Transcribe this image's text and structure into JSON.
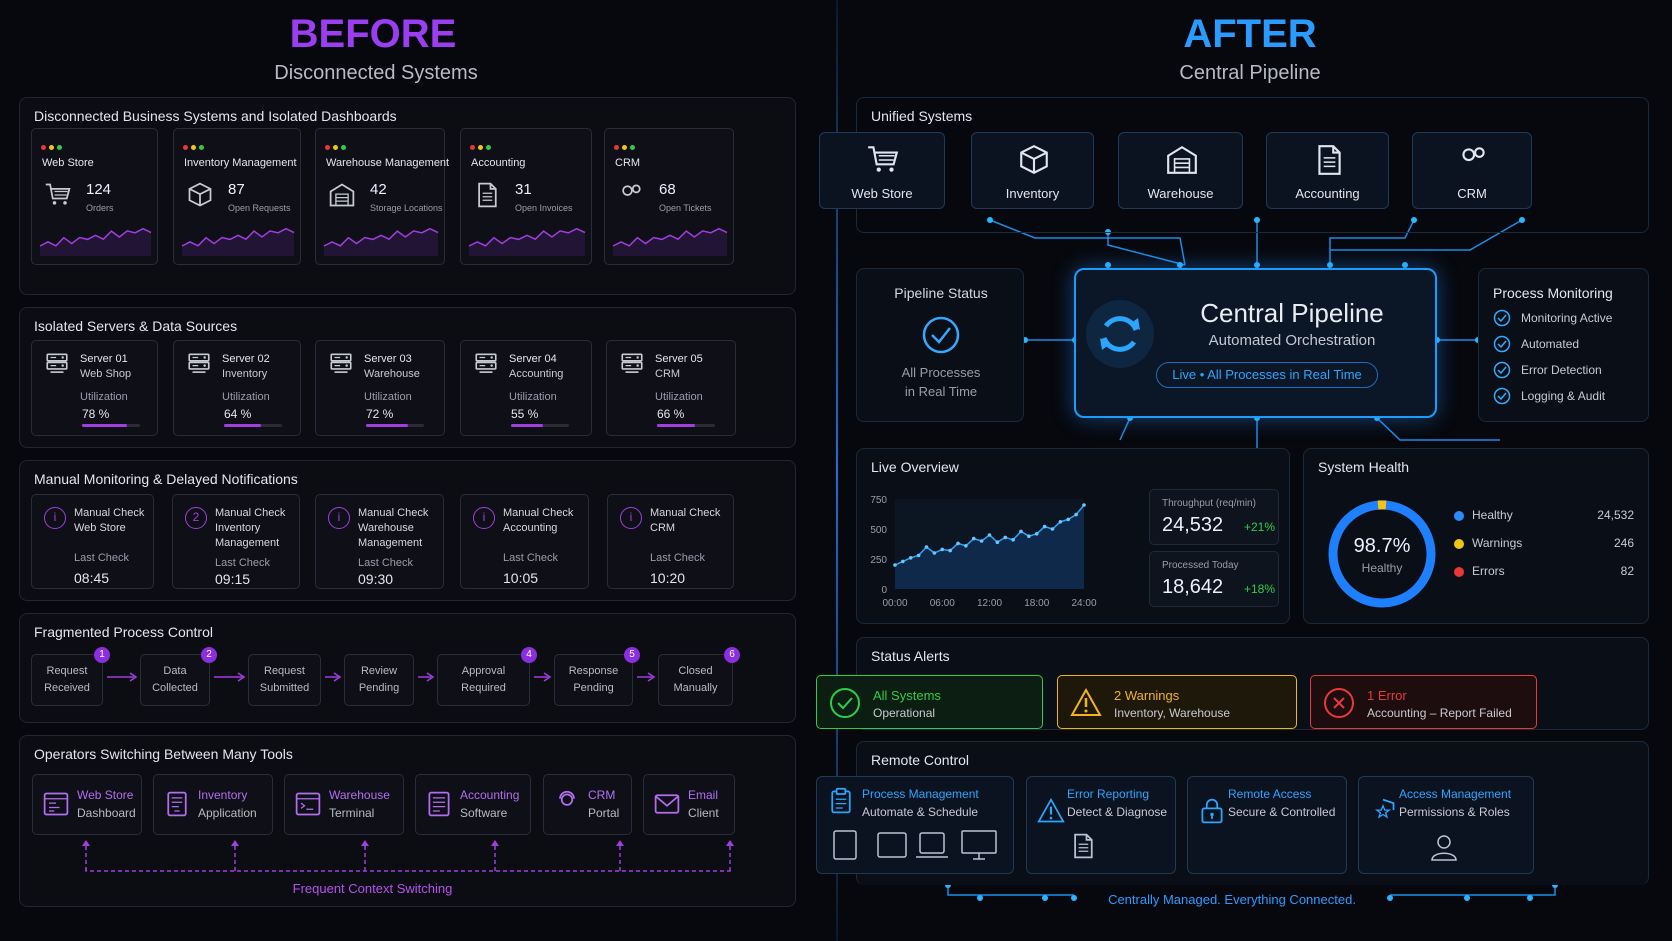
{
  "before": {
    "title": "BEFORE",
    "subtitle": "Disconnected Systems"
  },
  "after": {
    "title": "AFTER",
    "subtitle": "Central Pipeline"
  },
  "disconnected": {
    "title": "Disconnected Business Systems and Isolated Dashboards",
    "cards": [
      {
        "name": "Web Store",
        "value": "124",
        "label": "Orders",
        "icon": "cart-icon"
      },
      {
        "name": "Inventory Management",
        "value": "87",
        "label": "Open Requests",
        "icon": "box-icon"
      },
      {
        "name": "Warehouse Management",
        "value": "42",
        "label": "Storage Locations",
        "icon": "warehouse-icon"
      },
      {
        "name": "Accounting",
        "value": "31",
        "label": "Open Invoices",
        "icon": "document-icon"
      },
      {
        "name": "CRM",
        "value": "68",
        "label": "Open Tickets",
        "icon": "users-icon"
      }
    ]
  },
  "servers": {
    "title": "Isolated Servers & Data Sources",
    "util_label": "Utilization",
    "items": [
      {
        "name": "Server 01",
        "sub": "Web Shop",
        "util": "78 %",
        "pct": 78
      },
      {
        "name": "Server 02",
        "sub": "Inventory",
        "util": "64 %",
        "pct": 64
      },
      {
        "name": "Server 03",
        "sub": "Warehouse",
        "util": "72 %",
        "pct": 72
      },
      {
        "name": "Server 04",
        "sub": "Accounting",
        "util": "55 %",
        "pct": 55
      },
      {
        "name": "Server 05",
        "sub": "CRM",
        "util": "66 %",
        "pct": 66
      }
    ]
  },
  "manual": {
    "title": "Manual Monitoring & Delayed Notifications",
    "last_label": "Last Check",
    "items": [
      {
        "l1": "Manual Check",
        "l2": "Web Store",
        "l3": "",
        "time": "08:45"
      },
      {
        "l1": "Manual Check",
        "l2": "Inventory",
        "l3": "Management",
        "time": "09:15"
      },
      {
        "l1": "Manual Check",
        "l2": "Warehouse",
        "l3": "Management",
        "time": "09:30"
      },
      {
        "l1": "Manual Check",
        "l2": "Accounting",
        "l3": "",
        "time": "10:05"
      },
      {
        "l1": "Manual Check",
        "l2": "CRM",
        "l3": "",
        "time": "10:20"
      }
    ]
  },
  "process": {
    "title": "Fragmented Process Control",
    "steps": [
      {
        "l1": "Request",
        "l2": "Received",
        "badge": "1"
      },
      {
        "l1": "Data",
        "l2": "Collected",
        "badge": "2"
      },
      {
        "l1": "Request",
        "l2": "Submitted",
        "badge": ""
      },
      {
        "l1": "Review",
        "l2": "Pending",
        "badge": ""
      },
      {
        "l1": "Approval",
        "l2": "Required",
        "badge": "4"
      },
      {
        "l1": "Response",
        "l2": "Pending",
        "badge": "5"
      },
      {
        "l1": "Closed",
        "l2": "Manually",
        "badge": "6"
      }
    ]
  },
  "operators": {
    "title": "Operators Switching Between Many Tools",
    "footer": "Frequent Context Switching",
    "tools": [
      {
        "l1": "Web Store",
        "l2": "Dashboard",
        "icon": "dashboard-icon"
      },
      {
        "l1": "Inventory",
        "l2": "Application",
        "icon": "application-icon"
      },
      {
        "l1": "Warehouse",
        "l2": "Terminal",
        "icon": "terminal-icon"
      },
      {
        "l1": "Accounting",
        "l2": "Software",
        "icon": "software-icon"
      },
      {
        "l1": "CRM",
        "l2": "Portal",
        "icon": "portal-icon"
      },
      {
        "l1": "Email",
        "l2": "Client",
        "icon": "email-icon"
      }
    ]
  },
  "unified": {
    "title": "Unified Systems",
    "items": [
      {
        "label": "Web Store",
        "icon": "cart-icon"
      },
      {
        "label": "Inventory",
        "icon": "box-icon"
      },
      {
        "label": "Warehouse",
        "icon": "warehouse-icon"
      },
      {
        "label": "Accounting",
        "icon": "document-icon"
      },
      {
        "label": "CRM",
        "icon": "users-icon"
      }
    ]
  },
  "pipeline_status": {
    "title": "Pipeline Status",
    "l1": "All Processes",
    "l2": "in Real Time"
  },
  "central": {
    "title": "Central Pipeline",
    "subtitle": "Automated Orchestration",
    "badge": "Live • All Processes in Real Time"
  },
  "monitoring": {
    "title": "Process Monitoring",
    "items": [
      "Monitoring Active",
      "Automated",
      "Error Detection",
      "Logging & Audit"
    ]
  },
  "live": {
    "title": "Live Overview",
    "throughput_label": "Throughput (req/min)",
    "throughput": "24,532",
    "throughput_delta": "+21%",
    "processed_label": "Processed Today",
    "processed": "18,642",
    "processed_delta": "+18%"
  },
  "chart_data": {
    "type": "line",
    "x_ticks": [
      "00:00",
      "06:00",
      "12:00",
      "18:00",
      "24:00"
    ],
    "y_ticks": [
      "750",
      "500",
      "250",
      "0"
    ],
    "ylim": [
      0,
      750
    ],
    "x": [
      0,
      1,
      2,
      3,
      4,
      5,
      6,
      7,
      8,
      9,
      10,
      11,
      12,
      13,
      14,
      15,
      16,
      17,
      18,
      19,
      20,
      21,
      22,
      23,
      24
    ],
    "values": [
      200,
      230,
      260,
      280,
      350,
      300,
      330,
      320,
      380,
      360,
      420,
      400,
      450,
      390,
      430,
      410,
      480,
      440,
      460,
      520,
      500,
      560,
      580,
      620,
      700
    ]
  },
  "health": {
    "title": "System Health",
    "percent": "98.7%",
    "label": "Healthy",
    "legend": [
      {
        "name": "Healthy",
        "value": "24,532",
        "color": "#2a8cff"
      },
      {
        "name": "Warnings",
        "value": "246",
        "color": "#f2c418"
      },
      {
        "name": "Errors",
        "value": "82",
        "color": "#e8383a"
      }
    ]
  },
  "alerts": {
    "title": "Status Alerts",
    "items": [
      {
        "l1": "All Systems",
        "l2": "Operational",
        "color": "#2ecc4a"
      },
      {
        "l1": "2 Warnings",
        "l2": "Inventory, Warehouse",
        "color": "#f2b418"
      },
      {
        "l1": "1 Error",
        "l2": "Accounting – Report Failed",
        "color": "#e8383a"
      }
    ]
  },
  "remote": {
    "title": "Remote Control",
    "footer": "Centrally Managed. Everything Connected.",
    "items": [
      {
        "l1": "Process Management",
        "l2": "Automate & Schedule",
        "icon": "clipboard-icon"
      },
      {
        "l1": "Error Reporting",
        "l2": "Detect & Diagnose",
        "icon": "warning-icon"
      },
      {
        "l1": "Remote Access",
        "l2": "Secure & Controlled",
        "icon": "lock-icon"
      },
      {
        "l1": "Access Management",
        "l2": "Permissions & Roles",
        "icon": "shield-icon"
      }
    ]
  }
}
